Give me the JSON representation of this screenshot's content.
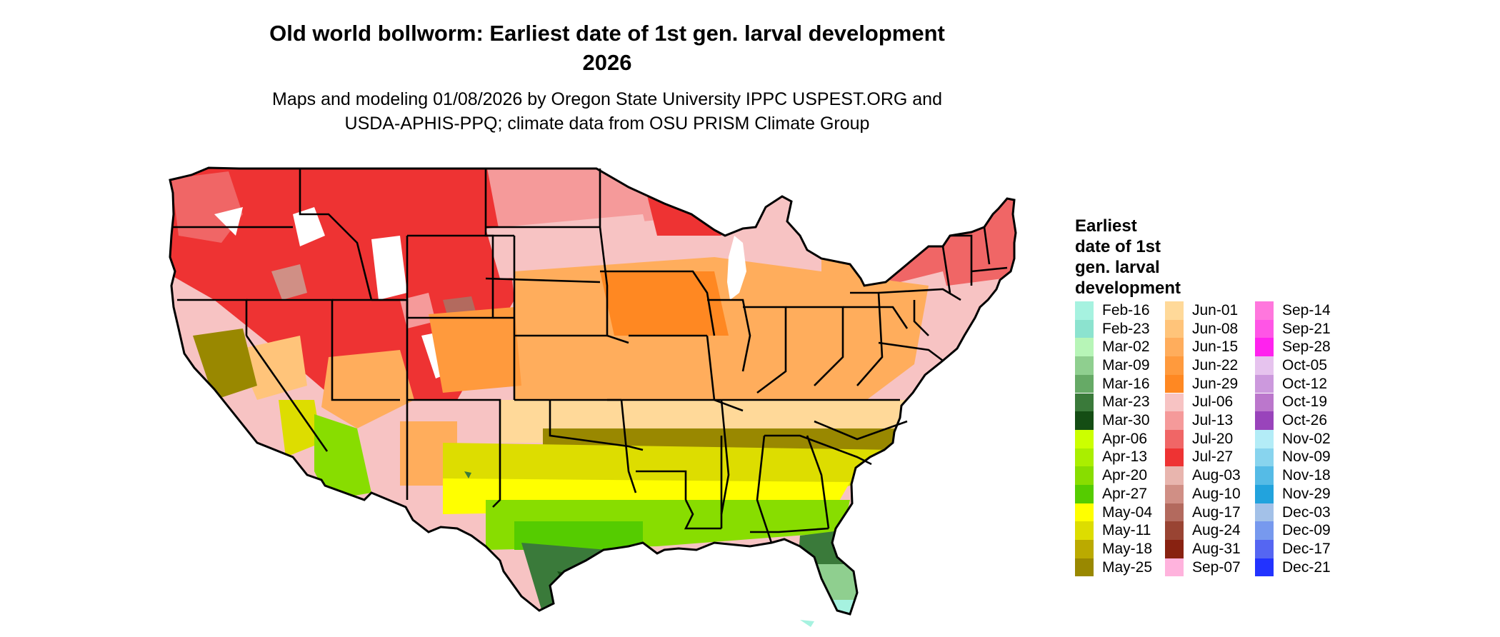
{
  "title_line1": "Old world bollworm: Earliest date of 1st gen. larval development",
  "title_line2": "2026",
  "subtitle_line1": "Maps and modeling 01/08/2026 by Oregon State University IPPC USPEST.ORG and",
  "subtitle_line2": "USDA-APHIS-PPQ; climate data from OSU PRISM Climate Group",
  "legend": {
    "title_lines": [
      "Earliest",
      "date of 1st",
      "gen. larval",
      "development"
    ],
    "items": [
      {
        "label": "Feb-16",
        "color": "#a6f2e0"
      },
      {
        "label": "Feb-23",
        "color": "#8ce3cf"
      },
      {
        "label": "Mar-02",
        "color": "#b7f5b7"
      },
      {
        "label": "Mar-09",
        "color": "#8fcf8f"
      },
      {
        "label": "Mar-16",
        "color": "#66aa66"
      },
      {
        "label": "Mar-23",
        "color": "#3a7a3a"
      },
      {
        "label": "Mar-30",
        "color": "#144d14"
      },
      {
        "label": "Apr-06",
        "color": "#ccff00"
      },
      {
        "label": "Apr-13",
        "color": "#aaee00"
      },
      {
        "label": "Apr-20",
        "color": "#88dd00"
      },
      {
        "label": "Apr-27",
        "color": "#55cc00"
      },
      {
        "label": "May-04",
        "color": "#ffff00"
      },
      {
        "label": "May-11",
        "color": "#dddd00"
      },
      {
        "label": "May-18",
        "color": "#bbaa00"
      },
      {
        "label": "May-25",
        "color": "#998800"
      },
      {
        "label": "Jun-01",
        "color": "#ffd999"
      },
      {
        "label": "Jun-08",
        "color": "#ffc47a"
      },
      {
        "label": "Jun-15",
        "color": "#ffad5c"
      },
      {
        "label": "Jun-22",
        "color": "#ff9a3d"
      },
      {
        "label": "Jun-29",
        "color": "#ff8822"
      },
      {
        "label": "Jul-06",
        "color": "#f7c3c3"
      },
      {
        "label": "Jul-13",
        "color": "#f59a9a"
      },
      {
        "label": "Jul-20",
        "color": "#f06666"
      },
      {
        "label": "Jul-27",
        "color": "#ee3333"
      },
      {
        "label": "Aug-03",
        "color": "#e8b5ae"
      },
      {
        "label": "Aug-10",
        "color": "#d08f85"
      },
      {
        "label": "Aug-17",
        "color": "#b36a5e"
      },
      {
        "label": "Aug-24",
        "color": "#994433"
      },
      {
        "label": "Aug-31",
        "color": "#882211"
      },
      {
        "label": "Sep-07",
        "color": "#ffb3dd"
      },
      {
        "label": "Sep-14",
        "color": "#ff77dd"
      },
      {
        "label": "Sep-21",
        "color": "#ff55e6"
      },
      {
        "label": "Sep-28",
        "color": "#ff22ee"
      },
      {
        "label": "Oct-05",
        "color": "#e6c3ee"
      },
      {
        "label": "Oct-12",
        "color": "#cc99dd"
      },
      {
        "label": "Oct-19",
        "color": "#bb77cc"
      },
      {
        "label": "Oct-26",
        "color": "#9944bb"
      },
      {
        "label": "Nov-02",
        "color": "#b3ecf7"
      },
      {
        "label": "Nov-09",
        "color": "#88d4ee"
      },
      {
        "label": "Nov-18",
        "color": "#55bbe6"
      },
      {
        "label": "Nov-29",
        "color": "#22a3dd"
      },
      {
        "label": "Dec-03",
        "color": "#a3c1e8"
      },
      {
        "label": "Dec-09",
        "color": "#7799ee"
      },
      {
        "label": "Dec-17",
        "color": "#5566f2"
      },
      {
        "label": "Dec-21",
        "color": "#2233ff"
      }
    ]
  }
}
